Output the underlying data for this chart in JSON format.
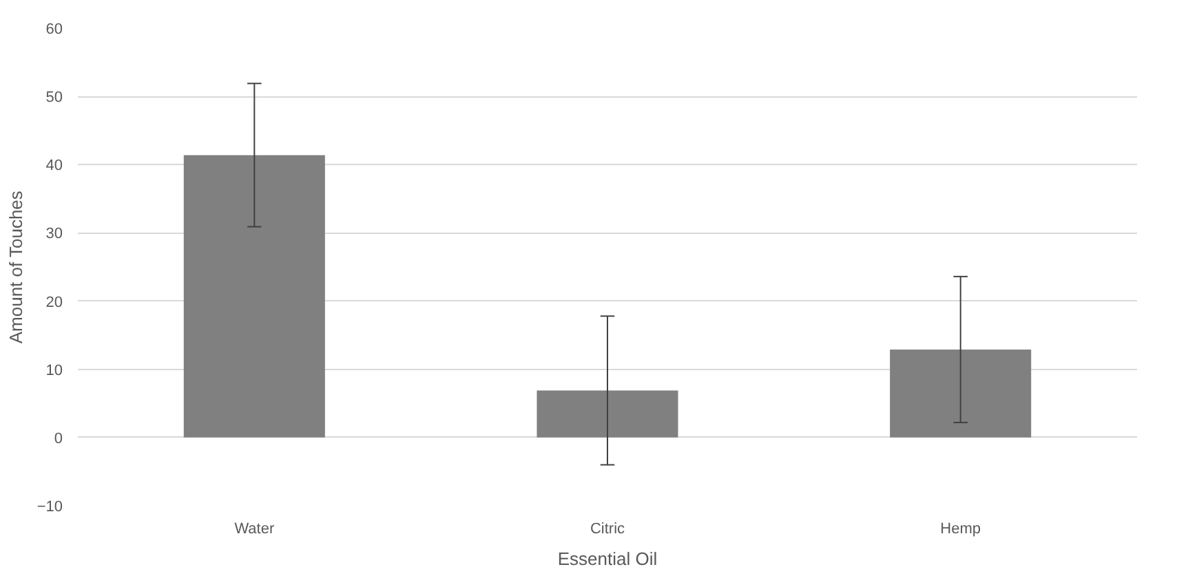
{
  "chart_data": {
    "type": "bar",
    "xlabel": "Essential Oil",
    "ylabel": "Amount of Touches",
    "categories": [
      "Water",
      "Citric",
      "Hemp"
    ],
    "values": [
      41.4,
      6.9,
      12.9
    ],
    "errors": [
      10.5,
      10.9,
      10.7
    ],
    "color": "#808080",
    "ylim": [
      -10,
      60
    ],
    "yticks": [
      -10,
      0,
      10,
      20,
      30,
      40,
      50,
      60
    ],
    "grid": "y"
  }
}
